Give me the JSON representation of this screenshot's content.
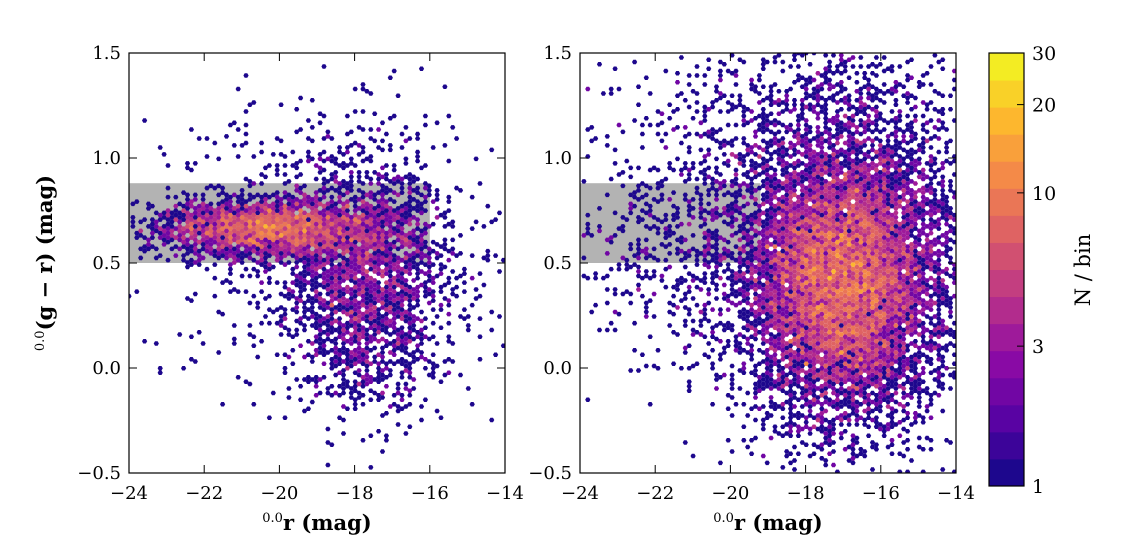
{
  "chart_data": [
    {
      "type": "hexbin",
      "panel": "left",
      "xlabel_sup": "0.0",
      "xlabel": "r (mag)",
      "ylabel_sup": "0.0",
      "ylabel": "(g − r) (mag)",
      "xlim": [
        -24,
        -14
      ],
      "ylim": [
        -0.5,
        1.5
      ],
      "x_ticks": [
        -24,
        -22,
        -20,
        -18,
        -16,
        -14
      ],
      "x_tick_labels": [
        "−24",
        "−22",
        "−20",
        "−18",
        "−16",
        "−14"
      ],
      "y_ticks": [
        -0.5,
        0.0,
        0.5,
        1.0,
        1.5
      ],
      "y_tick_labels": [
        "−0.5",
        "0.0",
        "0.5",
        "1.0",
        "1.5"
      ],
      "shaded_region": {
        "x": [
          -24,
          -16
        ],
        "y": [
          0.5,
          0.88
        ],
        "color": "#b3b3b3"
      },
      "density_peak": {
        "x": -20.5,
        "y": 0.68,
        "max_count": 30
      },
      "clusters": [
        {
          "x": -20.3,
          "y": 0.67,
          "sx": 1.5,
          "sy": 0.07,
          "n": 2600
        },
        {
          "x": -17.6,
          "y": 0.4,
          "sx": 1.1,
          "sy": 0.28,
          "n": 2000
        },
        {
          "x": -18.5,
          "y": 0.6,
          "sx": 2.2,
          "sy": 0.35,
          "n": 550
        }
      ]
    },
    {
      "type": "hexbin",
      "panel": "right",
      "xlabel_sup": "0.0",
      "xlabel": "r (mag)",
      "xlim": [
        -24,
        -14
      ],
      "ylim": [
        -0.5,
        1.5
      ],
      "x_ticks": [
        -24,
        -22,
        -20,
        -18,
        -16,
        -14
      ],
      "x_tick_labels": [
        "−24",
        "−22",
        "−20",
        "−18",
        "−16",
        "−14"
      ],
      "y_ticks": [
        -0.5,
        0.0,
        0.5,
        1.0,
        1.5
      ],
      "y_tick_labels": [
        "−0.5",
        "0.0",
        "0.5",
        "1.0",
        "1.5"
      ],
      "shaded_region": {
        "x": [
          -24,
          -19.2
        ],
        "y": [
          0.5,
          0.88
        ],
        "color": "#b3b3b3"
      },
      "density_peak": {
        "x": -17.0,
        "y": 0.45,
        "max_count": 30
      },
      "clusters": [
        {
          "x": -17.0,
          "y": 0.4,
          "sx": 1.2,
          "sy": 0.3,
          "n": 7000
        },
        {
          "x": -16.8,
          "y": 0.55,
          "sx": 1.7,
          "sy": 0.45,
          "n": 3200
        },
        {
          "x": -18.5,
          "y": 0.8,
          "sx": 2.5,
          "sy": 0.5,
          "n": 1400
        },
        {
          "x": -21.5,
          "y": 0.55,
          "sx": 1.5,
          "sy": 0.2,
          "n": 250
        }
      ]
    }
  ],
  "colorbar": {
    "label": "N / bin",
    "scale": "log",
    "range": [
      1,
      30
    ],
    "ticks": [
      1,
      3,
      10,
      20,
      30
    ],
    "tick_labels": [
      "1",
      "3",
      "10",
      "20",
      "30"
    ],
    "colormap": "plasma",
    "n_levels": 16
  }
}
